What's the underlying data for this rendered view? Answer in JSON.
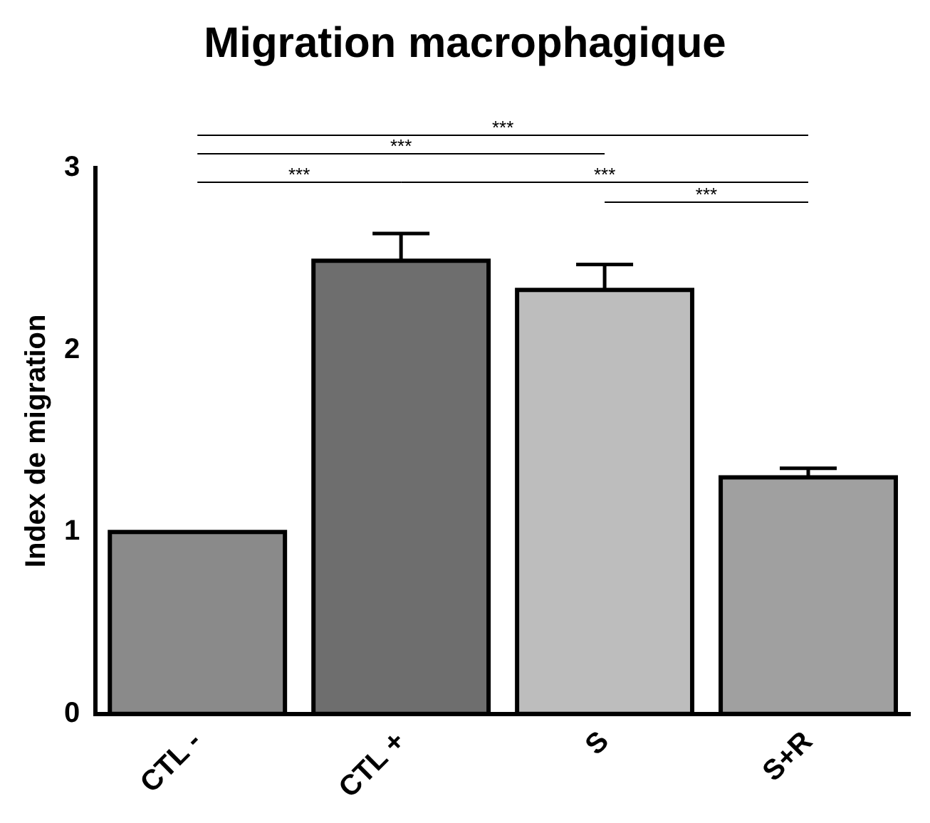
{
  "chart_data": {
    "type": "bar",
    "title": "Migration macrophagique",
    "ylabel": "Index de migration",
    "categories": [
      "CTL -",
      "CTL +",
      "S",
      "S+R"
    ],
    "values": [
      1.0,
      2.49,
      2.33,
      1.3
    ],
    "errors": [
      null,
      0.15,
      0.14,
      0.05
    ],
    "colors": [
      "#8a8a8a",
      "#6e6e6e",
      "#bdbdbd",
      "#a0a0a0"
    ],
    "ylim": [
      0,
      3
    ],
    "yticks": [
      0,
      1,
      2,
      3
    ],
    "grid": false,
    "legend": false,
    "annotations": [
      "***",
      "***",
      "***",
      "***",
      "***"
    ]
  }
}
